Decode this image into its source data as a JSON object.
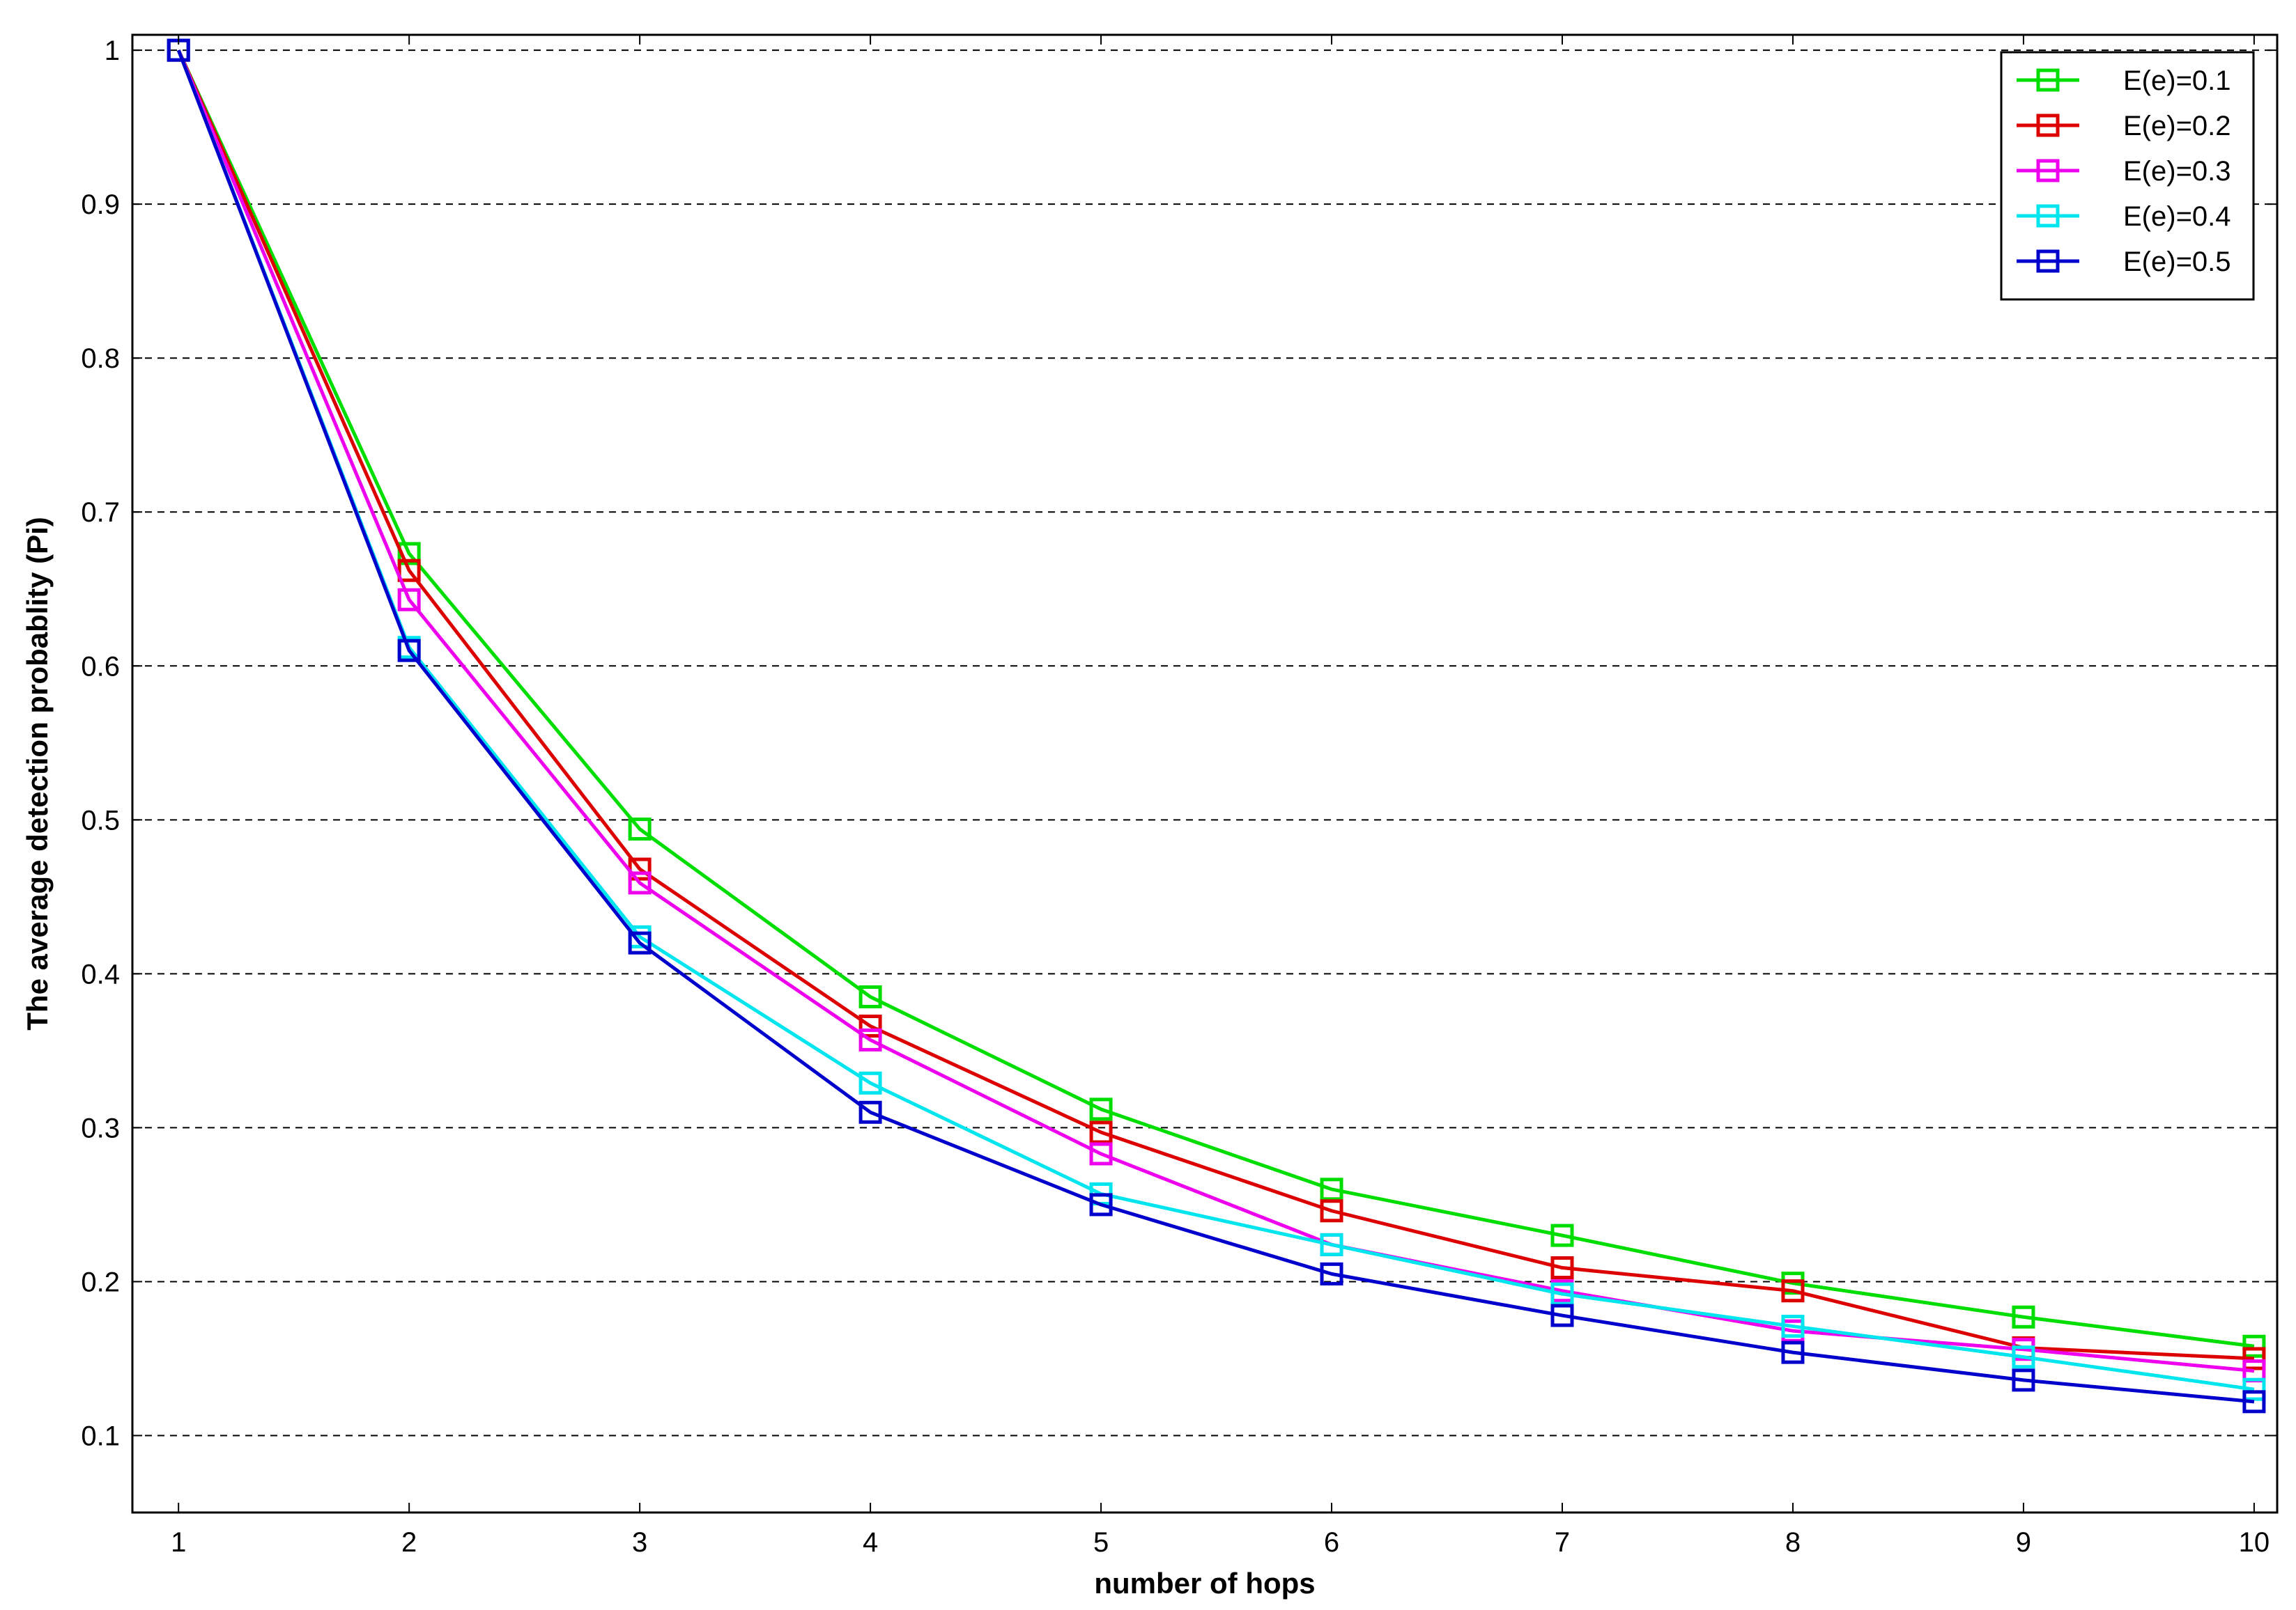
{
  "chart_data": {
    "type": "line",
    "title": "",
    "xlabel": "number of hops",
    "ylabel": "The average detection probablity (Pi)",
    "x": [
      1,
      2,
      3,
      4,
      5,
      6,
      7,
      8,
      9,
      10
    ],
    "xlim": [
      0.8,
      10.1
    ],
    "ylim": [
      0.05,
      1.01
    ],
    "xticks": [
      "1",
      "2",
      "3",
      "4",
      "5",
      "6",
      "7",
      "8",
      "9",
      "10"
    ],
    "yticks": [
      "0.1",
      "0.2",
      "0.3",
      "0.4",
      "0.5",
      "0.6",
      "0.7",
      "0.8",
      "0.9",
      "1"
    ],
    "grid": "horizontal dashed",
    "legend_position": "top-right",
    "marker": "square",
    "series": [
      {
        "name": "E(e)=0.1",
        "color": "#00dd00",
        "values": [
          1.0,
          0.673,
          0.494,
          0.385,
          0.312,
          0.26,
          0.23,
          0.199,
          0.177,
          0.158
        ]
      },
      {
        "name": "E(e)=0.2",
        "color": "#dd0000",
        "values": [
          1.0,
          0.662,
          0.468,
          0.366,
          0.297,
          0.246,
          0.209,
          0.194,
          0.157,
          0.15
        ]
      },
      {
        "name": "E(e)=0.3",
        "color": "#ee00ee",
        "values": [
          1.0,
          0.643,
          0.459,
          0.357,
          0.283,
          0.224,
          0.194,
          0.168,
          0.156,
          0.142
        ]
      },
      {
        "name": "E(e)=0.4",
        "color": "#00e5ee",
        "values": [
          1.0,
          0.612,
          0.424,
          0.329,
          0.257,
          0.224,
          0.192,
          0.171,
          0.151,
          0.13
        ]
      },
      {
        "name": "E(e)=0.5",
        "color": "#0000cc",
        "values": [
          1.0,
          0.61,
          0.42,
          0.31,
          0.25,
          0.205,
          0.178,
          0.154,
          0.136,
          0.122
        ]
      }
    ]
  }
}
